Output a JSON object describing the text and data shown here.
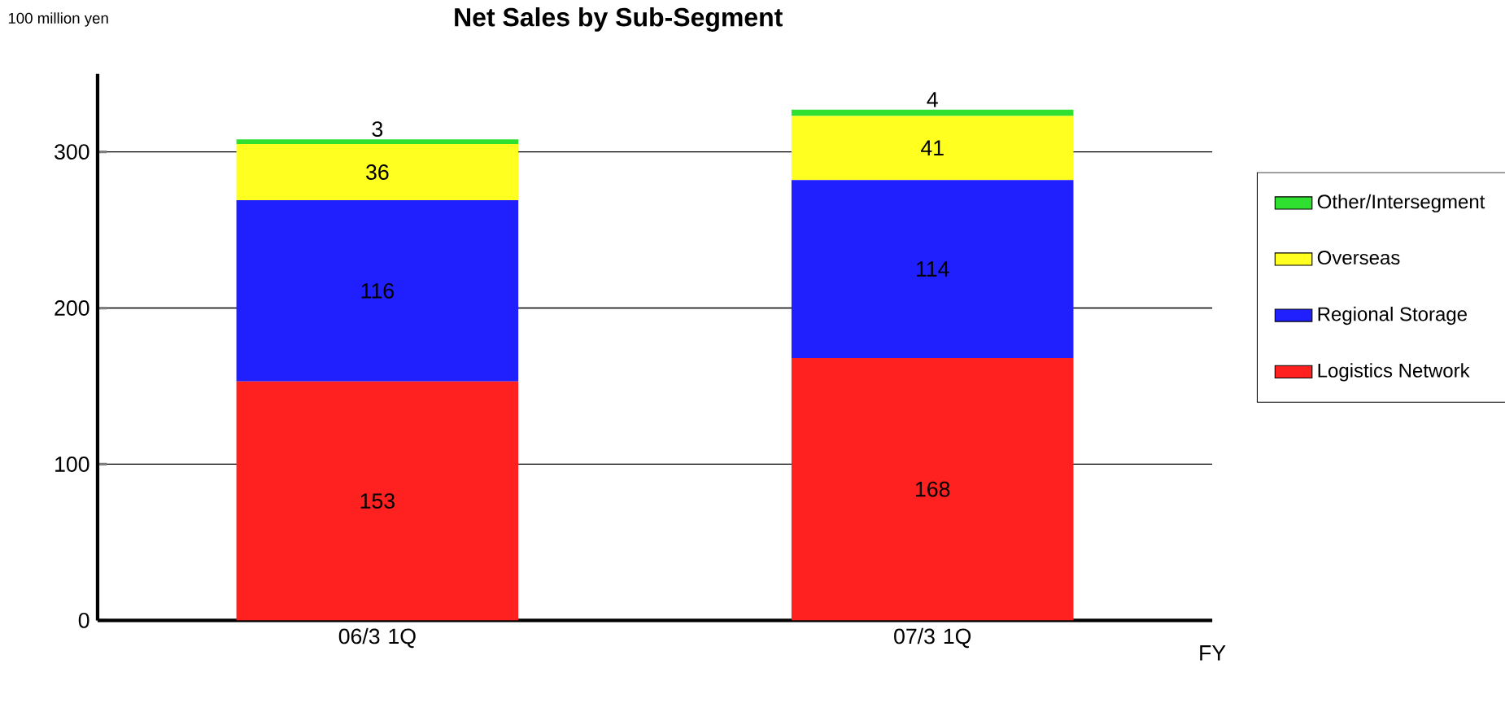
{
  "chart_data": {
    "type": "bar",
    "title": "Net Sales by Sub-Segment",
    "ylabel": "100 million yen",
    "xlabel": "FY",
    "categories": [
      "06/3 1Q",
      "07/3 1Q"
    ],
    "series": [
      {
        "name": "Logistics Network",
        "color": "#ff2020",
        "values": [
          153,
          168
        ]
      },
      {
        "name": "Regional Storage",
        "color": "#2020ff",
        "values": [
          116,
          114
        ]
      },
      {
        "name": "Overseas",
        "color": "#ffff20",
        "values": [
          36,
          41
        ]
      },
      {
        "name": "Other/Intersegment",
        "color": "#30e030",
        "values": [
          3,
          4
        ]
      }
    ],
    "stacked": true,
    "data_labels": true,
    "ylim": [
      0,
      350
    ],
    "yticks": [
      0,
      100,
      200,
      300
    ],
    "grid": "y",
    "legend": "right"
  }
}
